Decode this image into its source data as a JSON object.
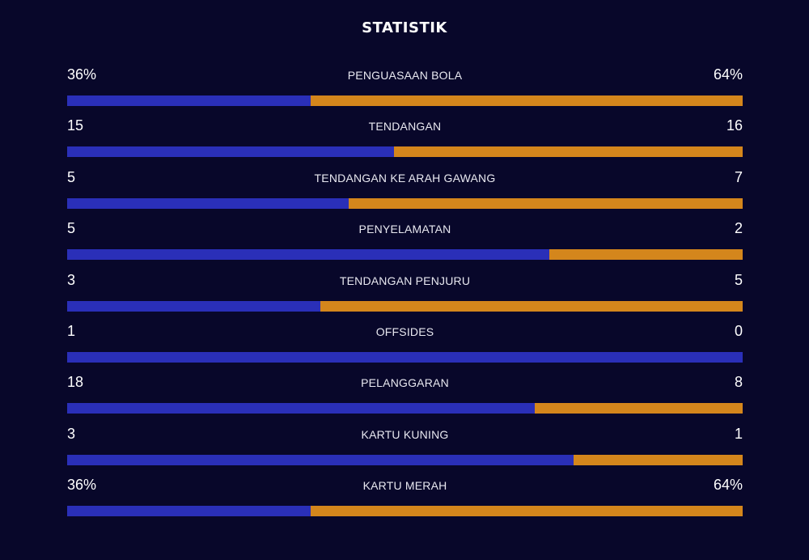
{
  "title": "STATISTIK",
  "colors": {
    "background": "#08072a",
    "home": "#2a2fb8",
    "away": "#d4861c"
  },
  "stats": [
    {
      "label": "PENGUASAAN BOLA",
      "home": "36%",
      "away": "64%",
      "home_share": 0.36
    },
    {
      "label": "TENDANGAN",
      "home": "15",
      "away": "16",
      "home_share": 0.484
    },
    {
      "label": "TENDANGAN KE ARAH GAWANG",
      "home": "5",
      "away": "7",
      "home_share": 0.417
    },
    {
      "label": "PENYELAMATAN",
      "home": "5",
      "away": "2",
      "home_share": 0.714
    },
    {
      "label": "TENDANGAN PENJURU",
      "home": "3",
      "away": "5",
      "home_share": 0.375
    },
    {
      "label": "OFFSIDES",
      "home": "1",
      "away": "0",
      "home_share": 1.0
    },
    {
      "label": "PELANGGARAN",
      "home": "18",
      "away": "8",
      "home_share": 0.692
    },
    {
      "label": "KARTU KUNING",
      "home": "3",
      "away": "1",
      "home_share": 0.75
    },
    {
      "label": "KARTU MERAH",
      "home": "36%",
      "away": "64%",
      "home_share": 0.36
    }
  ]
}
